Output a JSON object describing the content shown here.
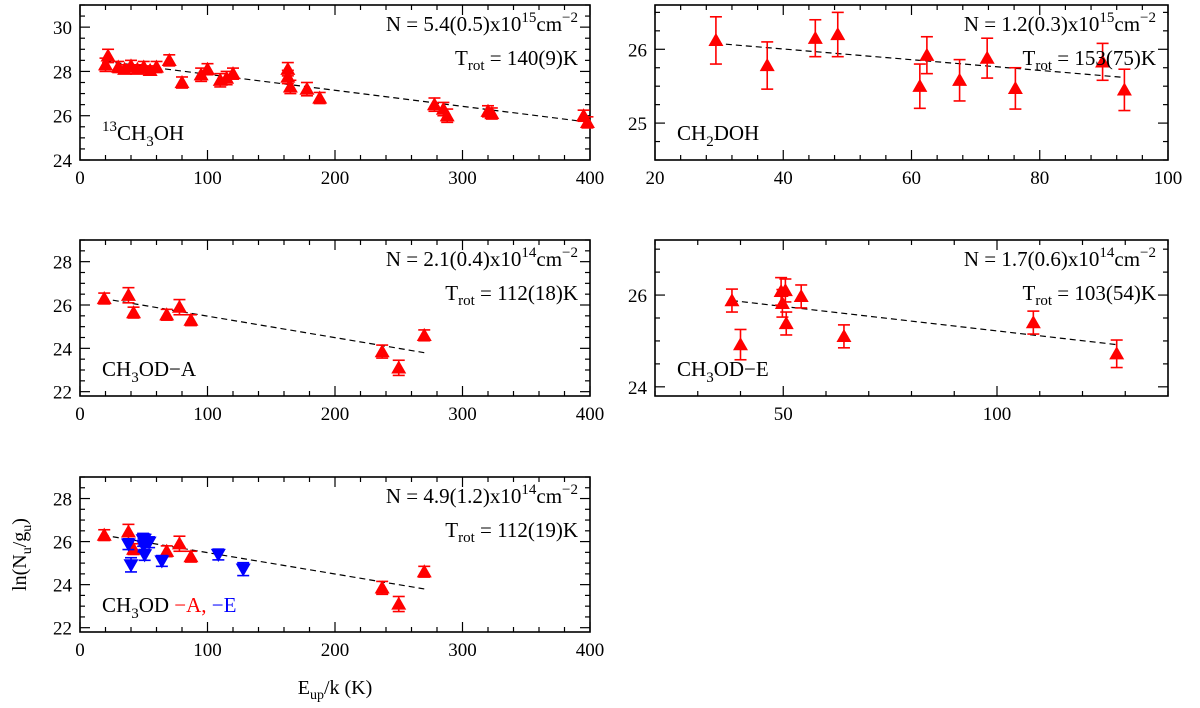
{
  "colors": {
    "a_species": "#ff0000",
    "e_species": "#0000ff",
    "axes": "#000000"
  },
  "chart_data": [
    {
      "type": "scatter",
      "id": "panel-13ch3oh",
      "molecule_label": "13CH3OH",
      "label_parts": [
        {
          "t": "13",
          "s": "sup"
        },
        {
          "t": "CH"
        },
        {
          "t": "3",
          "s": "sub"
        },
        {
          "t": "OH"
        }
      ],
      "column_density_text": "N = 5.4(0.5)x10",
      "column_density_exp": "15",
      "column_density_unit": "cm",
      "column_density_unit_exp": "−2",
      "trot_prefix": "T",
      "trot_sub": "rot",
      "trot_value": " = 140(9)K",
      "xlim": [
        0,
        400
      ],
      "ylim": [
        24,
        31
      ],
      "xticks": [
        0,
        100,
        200,
        300,
        400
      ],
      "yticks": [
        24,
        26,
        28,
        30
      ],
      "fit": [
        [
          20,
          28.45
        ],
        [
          400,
          25.7
        ]
      ],
      "series": [
        {
          "name": "A",
          "color": "#ff0000",
          "marker": "triangle-up",
          "points": [
            [
              22,
              28.7,
              0.3
            ],
            [
              20,
              28.3,
              0.3
            ],
            [
              30,
              28.2,
              0.25
            ],
            [
              35,
              28.1,
              0.2
            ],
            [
              40,
              28.25,
              0.25
            ],
            [
              45,
              28.1,
              0.2
            ],
            [
              50,
              28.2,
              0.25
            ],
            [
              55,
              28.05,
              0.2
            ],
            [
              60,
              28.2,
              0.25
            ],
            [
              70,
              28.5,
              0.25
            ],
            [
              80,
              27.5,
              0.25
            ],
            [
              95,
              27.85,
              0.3
            ],
            [
              100,
              28.1,
              0.25
            ],
            [
              110,
              27.6,
              0.3
            ],
            [
              115,
              27.7,
              0.3
            ],
            [
              120,
              27.9,
              0.25
            ],
            [
              163,
              28.1,
              0.3
            ],
            [
              163,
              27.75,
              0.3
            ],
            [
              165,
              27.3,
              0.3
            ],
            [
              178,
              27.2,
              0.3
            ],
            [
              188,
              26.8,
              0.25
            ],
            [
              278,
              26.5,
              0.3
            ],
            [
              285,
              26.3,
              0.3
            ],
            [
              288,
              26.0,
              0.3
            ],
            [
              320,
              26.2,
              0.25
            ],
            [
              323,
              26.1,
              0.25
            ],
            [
              395,
              26.0,
              0.25
            ],
            [
              398,
              25.7,
              0.25
            ]
          ]
        }
      ]
    },
    {
      "type": "scatter",
      "id": "panel-ch2doh",
      "molecule_label": "CH2DOH",
      "label_parts": [
        {
          "t": "CH"
        },
        {
          "t": "2",
          "s": "sub"
        },
        {
          "t": "DOH"
        }
      ],
      "column_density_text": "N = 1.2(0.3)x10",
      "column_density_exp": "15",
      "column_density_unit": "cm",
      "column_density_unit_exp": "−2",
      "trot_prefix": "T",
      "trot_sub": "rot",
      "trot_value": " = 153(75)K",
      "xlim": [
        20,
        100
      ],
      "ylim": [
        24.5,
        26.6
      ],
      "xticks": [
        20,
        40,
        60,
        80,
        100
      ],
      "yticks": [
        25,
        26
      ],
      "fit": [
        [
          29.5,
          26.08
        ],
        [
          93,
          25.62
        ]
      ],
      "series": [
        {
          "name": "A",
          "color": "#ff0000",
          "marker": "triangle-up",
          "points": [
            [
              29.5,
              26.12,
              0.32
            ],
            [
              37.5,
              25.78,
              0.32
            ],
            [
              45,
              26.15,
              0.25
            ],
            [
              48.5,
              26.2,
              0.3
            ],
            [
              61.3,
              25.5,
              0.3
            ],
            [
              62.4,
              25.92,
              0.25
            ],
            [
              67.5,
              25.58,
              0.28
            ],
            [
              71.8,
              25.88,
              0.27
            ],
            [
              76.2,
              25.47,
              0.28
            ],
            [
              89.8,
              25.83,
              0.25
            ],
            [
              93.2,
              25.45,
              0.28
            ]
          ]
        }
      ]
    },
    {
      "type": "scatter",
      "id": "panel-ch3od-a",
      "molecule_label": "CH3OD-A",
      "label_parts": [
        {
          "t": "CH"
        },
        {
          "t": "3",
          "s": "sub"
        },
        {
          "t": "OD−A"
        }
      ],
      "column_density_text": "N = 2.1(0.4)x10",
      "column_density_exp": "14",
      "column_density_unit": "cm",
      "column_density_unit_exp": "−2",
      "trot_prefix": "T",
      "trot_sub": "rot",
      "trot_value": " = 112(18)K",
      "xlim": [
        0,
        400
      ],
      "ylim": [
        21.8,
        29
      ],
      "xticks": [
        0,
        100,
        200,
        300,
        400
      ],
      "yticks": [
        22,
        24,
        26,
        28
      ],
      "fit": [
        [
          18,
          26.3
        ],
        [
          270,
          23.8
        ]
      ],
      "series": [
        {
          "name": "A",
          "color": "#ff0000",
          "marker": "triangle-up",
          "points": [
            [
              19,
              26.3,
              0.25
            ],
            [
              38,
              26.45,
              0.35
            ],
            [
              42,
              25.65,
              0.25
            ],
            [
              68,
              25.55,
              0.25
            ],
            [
              78,
              25.9,
              0.35
            ],
            [
              87,
              25.3,
              0.25
            ],
            [
              237,
              23.85,
              0.3
            ],
            [
              250,
              23.1,
              0.35
            ],
            [
              270,
              24.6,
              0.25
            ]
          ]
        }
      ]
    },
    {
      "type": "scatter",
      "id": "panel-ch3od-e",
      "molecule_label": "CH3OD-E",
      "label_parts": [
        {
          "t": "CH"
        },
        {
          "t": "3",
          "s": "sub"
        },
        {
          "t": "OD−E"
        }
      ],
      "column_density_text": "N = 1.7(0.6)x10",
      "column_density_exp": "14",
      "column_density_unit": "cm",
      "column_density_unit_exp": "−2",
      "trot_prefix": "T",
      "trot_sub": "rot",
      "trot_value": " = 103(54)K",
      "xlim": [
        20,
        140
      ],
      "ylim": [
        23.8,
        27.2
      ],
      "xticks": [
        50,
        100
      ],
      "yticks": [
        24,
        26
      ],
      "fit": [
        [
          38,
          25.88
        ],
        [
          128,
          24.92
        ]
      ],
      "series": [
        {
          "name": "E",
          "color": "#ff0000",
          "marker": "triangle-up",
          "points": [
            [
              38,
              25.88,
              0.25
            ],
            [
              40,
              24.92,
              0.33
            ],
            [
              49.5,
              26.08,
              0.3
            ],
            [
              49.8,
              25.82,
              0.3
            ],
            [
              50.5,
              26.1,
              0.25
            ],
            [
              50.7,
              25.38,
              0.25
            ],
            [
              54.2,
              25.97,
              0.25
            ],
            [
              64.2,
              25.1,
              0.25
            ],
            [
              108.5,
              25.4,
              0.25
            ],
            [
              128,
              24.72,
              0.3
            ]
          ]
        }
      ]
    },
    {
      "type": "scatter",
      "id": "panel-ch3od-combined",
      "molecule_label": "CH3OD",
      "label_parts": [
        {
          "t": "CH"
        },
        {
          "t": "3",
          "s": "sub"
        },
        {
          "t": "OD"
        }
      ],
      "legend_a": "−A,",
      "legend_e": "−E",
      "column_density_text": "N = 4.9(1.2)x10",
      "column_density_exp": "14",
      "column_density_unit": "cm",
      "column_density_unit_exp": "−2",
      "trot_prefix": "T",
      "trot_sub": "rot",
      "trot_value": " = 112(19)K",
      "xlim": [
        0,
        400
      ],
      "ylim": [
        21.8,
        29
      ],
      "xticks": [
        0,
        100,
        200,
        300,
        400
      ],
      "yticks": [
        22,
        24,
        26,
        28
      ],
      "xlabel_main": "E",
      "xlabel_sub": "up",
      "xlabel_rest": "/k (K)",
      "ylabel_main": "ln(N",
      "ylabel_sub1": "u",
      "ylabel_mid": "/g",
      "ylabel_sub2": "u",
      "ylabel_end": ")",
      "fit": [
        [
          18,
          26.3
        ],
        [
          270,
          23.8
        ]
      ],
      "series": [
        {
          "name": "CH3OD-A",
          "color": "#ff0000",
          "marker": "triangle-up",
          "points": [
            [
              19,
              26.3,
              0.25
            ],
            [
              38,
              26.45,
              0.35
            ],
            [
              42,
              25.65,
              0.25
            ],
            [
              68,
              25.55,
              0.25
            ],
            [
              78,
              25.9,
              0.35
            ],
            [
              87,
              25.3,
              0.25
            ],
            [
              237,
              23.85,
              0.3
            ],
            [
              250,
              23.1,
              0.35
            ],
            [
              270,
              24.6,
              0.25
            ]
          ]
        },
        {
          "name": "CH3OD-E",
          "color": "#0000ff",
          "marker": "triangle-down",
          "points": [
            [
              38,
              25.88,
              0.25
            ],
            [
              40,
              24.92,
              0.33
            ],
            [
              49.5,
              26.08,
              0.3
            ],
            [
              49.8,
              25.82,
              0.3
            ],
            [
              50.5,
              26.1,
              0.25
            ],
            [
              50.7,
              25.38,
              0.25
            ],
            [
              54.2,
              25.97,
              0.25
            ],
            [
              64.2,
              25.1,
              0.25
            ],
            [
              108.5,
              25.4,
              0.25
            ],
            [
              128,
              24.72,
              0.3
            ]
          ]
        }
      ]
    }
  ]
}
